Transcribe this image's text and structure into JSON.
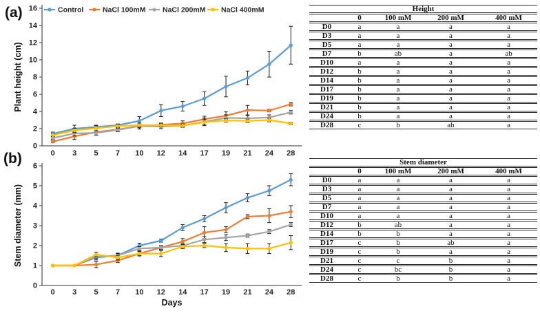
{
  "figure": {
    "panel_a_label": "(a)",
    "panel_b_label": "(b)"
  },
  "colors": {
    "control": "#5B9BD5",
    "nacl_100": "#ED7D31",
    "nacl_200": "#A5A5A5",
    "nacl_400": "#FFC000",
    "error_bar": "#1a1a1a",
    "axis": "#595959",
    "text": "#262626"
  },
  "chart_data": [
    {
      "type": "line",
      "panel": "a",
      "title": "",
      "xlabel": "",
      "ylabel": "Plant height (cm)",
      "ylim": [
        0,
        16
      ],
      "ytick_step": 2,
      "grid": false,
      "legend_position": "top",
      "categories": [
        0,
        3,
        5,
        7,
        10,
        12,
        14,
        17,
        19,
        21,
        24,
        28
      ],
      "series": [
        {
          "name": "Control",
          "color": "#5B9BD5",
          "values": [
            1.4,
            2.0,
            2.2,
            2.4,
            2.9,
            4.1,
            4.6,
            5.5,
            6.9,
            7.9,
            9.5,
            11.7
          ],
          "errors": [
            0.2,
            0.4,
            0.2,
            0.15,
            0.5,
            0.7,
            0.55,
            0.8,
            1.2,
            0.8,
            1.5,
            2.2
          ]
        },
        {
          "name": "NaCl 100mM",
          "color": "#ED7D31",
          "values": [
            0.5,
            1.1,
            1.6,
            1.9,
            2.3,
            2.45,
            2.6,
            3.1,
            3.5,
            4.15,
            4.1,
            4.85
          ],
          "errors": [
            0.15,
            0.35,
            0.35,
            0.25,
            0.2,
            0.2,
            0.3,
            0.35,
            0.45,
            0.55,
            0.15,
            0.2
          ]
        },
        {
          "name": "NaCl 200mM",
          "color": "#A5A5A5",
          "values": [
            0.9,
            1.45,
            1.5,
            1.85,
            2.3,
            2.25,
            2.35,
            2.8,
            3.25,
            3.2,
            3.3,
            3.9
          ],
          "errors": [
            0.15,
            0.3,
            0.25,
            0.2,
            0.35,
            0.25,
            0.2,
            0.45,
            0.35,
            0.3,
            0.3,
            0.2
          ]
        },
        {
          "name": "NaCl 400mM",
          "color": "#FFC000",
          "values": [
            1.25,
            1.8,
            2.05,
            2.3,
            2.4,
            2.4,
            2.35,
            2.75,
            2.95,
            2.9,
            3.0,
            2.6
          ],
          "errors": [
            0.15,
            0.25,
            0.3,
            0.2,
            0.25,
            0.2,
            0.15,
            0.3,
            0.2,
            0.2,
            0.2,
            0.15
          ]
        }
      ]
    },
    {
      "type": "line",
      "panel": "b",
      "title": "",
      "xlabel": "Days",
      "ylabel": "Stem diameter (mm)",
      "ylim": [
        0,
        6
      ],
      "ytick_step": 1,
      "grid": false,
      "legend_position": "none",
      "categories": [
        0,
        3,
        5,
        7,
        10,
        12,
        14,
        17,
        19,
        21,
        24,
        28
      ],
      "series": [
        {
          "name": "Control",
          "color": "#5B9BD5",
          "values": [
            1.0,
            1.0,
            1.4,
            1.5,
            2.0,
            2.25,
            2.9,
            3.35,
            3.9,
            4.4,
            4.75,
            5.3
          ],
          "errors": [
            0.03,
            0.03,
            0.12,
            0.12,
            0.12,
            0.08,
            0.15,
            0.15,
            0.25,
            0.2,
            0.25,
            0.3
          ]
        },
        {
          "name": "NaCl 100mM",
          "color": "#ED7D31",
          "values": [
            1.0,
            1.0,
            1.05,
            1.25,
            1.6,
            1.9,
            2.2,
            2.65,
            2.8,
            3.45,
            3.5,
            3.7
          ],
          "errors": [
            0.03,
            0.03,
            0.15,
            0.1,
            0.1,
            0.1,
            0.15,
            0.3,
            0.15,
            0.1,
            0.35,
            0.3
          ]
        },
        {
          "name": "NaCl 200mM",
          "color": "#A5A5A5",
          "values": [
            1.0,
            1.0,
            1.45,
            1.5,
            1.85,
            1.9,
            2.0,
            2.3,
            2.4,
            2.5,
            2.7,
            3.05
          ],
          "errors": [
            0.03,
            0.03,
            0.1,
            0.1,
            0.1,
            0.08,
            0.1,
            0.15,
            0.15,
            0.08,
            0.1,
            0.1
          ]
        },
        {
          "name": "NaCl 400mM",
          "color": "#FFC000",
          "values": [
            1.0,
            1.0,
            1.55,
            1.4,
            1.6,
            1.6,
            1.95,
            2.0,
            1.9,
            1.85,
            1.85,
            2.15
          ],
          "errors": [
            0.03,
            0.03,
            0.12,
            0.12,
            0.12,
            0.15,
            0.1,
            0.1,
            0.2,
            0.25,
            0.25,
            0.35
          ]
        }
      ]
    }
  ],
  "tables": [
    {
      "title": "Height",
      "columns": [
        "",
        "0",
        "100 mM",
        "200 mM",
        "400 mM"
      ],
      "rows": [
        [
          "D0",
          "a",
          "a",
          "a",
          "a"
        ],
        [
          "D3",
          "a",
          "a",
          "a",
          "a"
        ],
        [
          "D5",
          "a",
          "a",
          "a",
          "a"
        ],
        [
          "D7",
          "b",
          "ab",
          "a",
          "ab"
        ],
        [
          "D10",
          "a",
          "a",
          "a",
          "a"
        ],
        [
          "D12",
          "b",
          "a",
          "a",
          "a"
        ],
        [
          "D14",
          "b",
          "a",
          "a",
          "a"
        ],
        [
          "D17",
          "b",
          "a",
          "a",
          "a"
        ],
        [
          "D19",
          "b",
          "a",
          "a",
          "a"
        ],
        [
          "D21",
          "b",
          "a",
          "a",
          "a"
        ],
        [
          "D24",
          "b",
          "a",
          "a",
          "a"
        ],
        [
          "D28",
          "c",
          "b",
          "ab",
          "a"
        ]
      ]
    },
    {
      "title": "Stem diameter",
      "columns": [
        "",
        "0",
        "100 mM",
        "200 mM",
        "400 mM"
      ],
      "rows": [
        [
          "D0",
          "a",
          "a",
          "a",
          "a"
        ],
        [
          "D3",
          "a",
          "a",
          "a",
          "a"
        ],
        [
          "D5",
          "a",
          "a",
          "a",
          "a"
        ],
        [
          "D7",
          "a",
          "a",
          "a",
          "a"
        ],
        [
          "D10",
          "a",
          "a",
          "a",
          "a"
        ],
        [
          "D12",
          "b",
          "ab",
          "a",
          "a"
        ],
        [
          "D14",
          "b",
          "b",
          "a",
          "a"
        ],
        [
          "D17",
          "c",
          "b",
          "ab",
          "a"
        ],
        [
          "D19",
          "c",
          "b",
          "a",
          "a"
        ],
        [
          "D21",
          "c",
          "c",
          "b",
          "a"
        ],
        [
          "D24",
          "c",
          "bc",
          "b",
          "a"
        ],
        [
          "D28",
          "c",
          "b",
          "b",
          "a"
        ]
      ]
    }
  ]
}
